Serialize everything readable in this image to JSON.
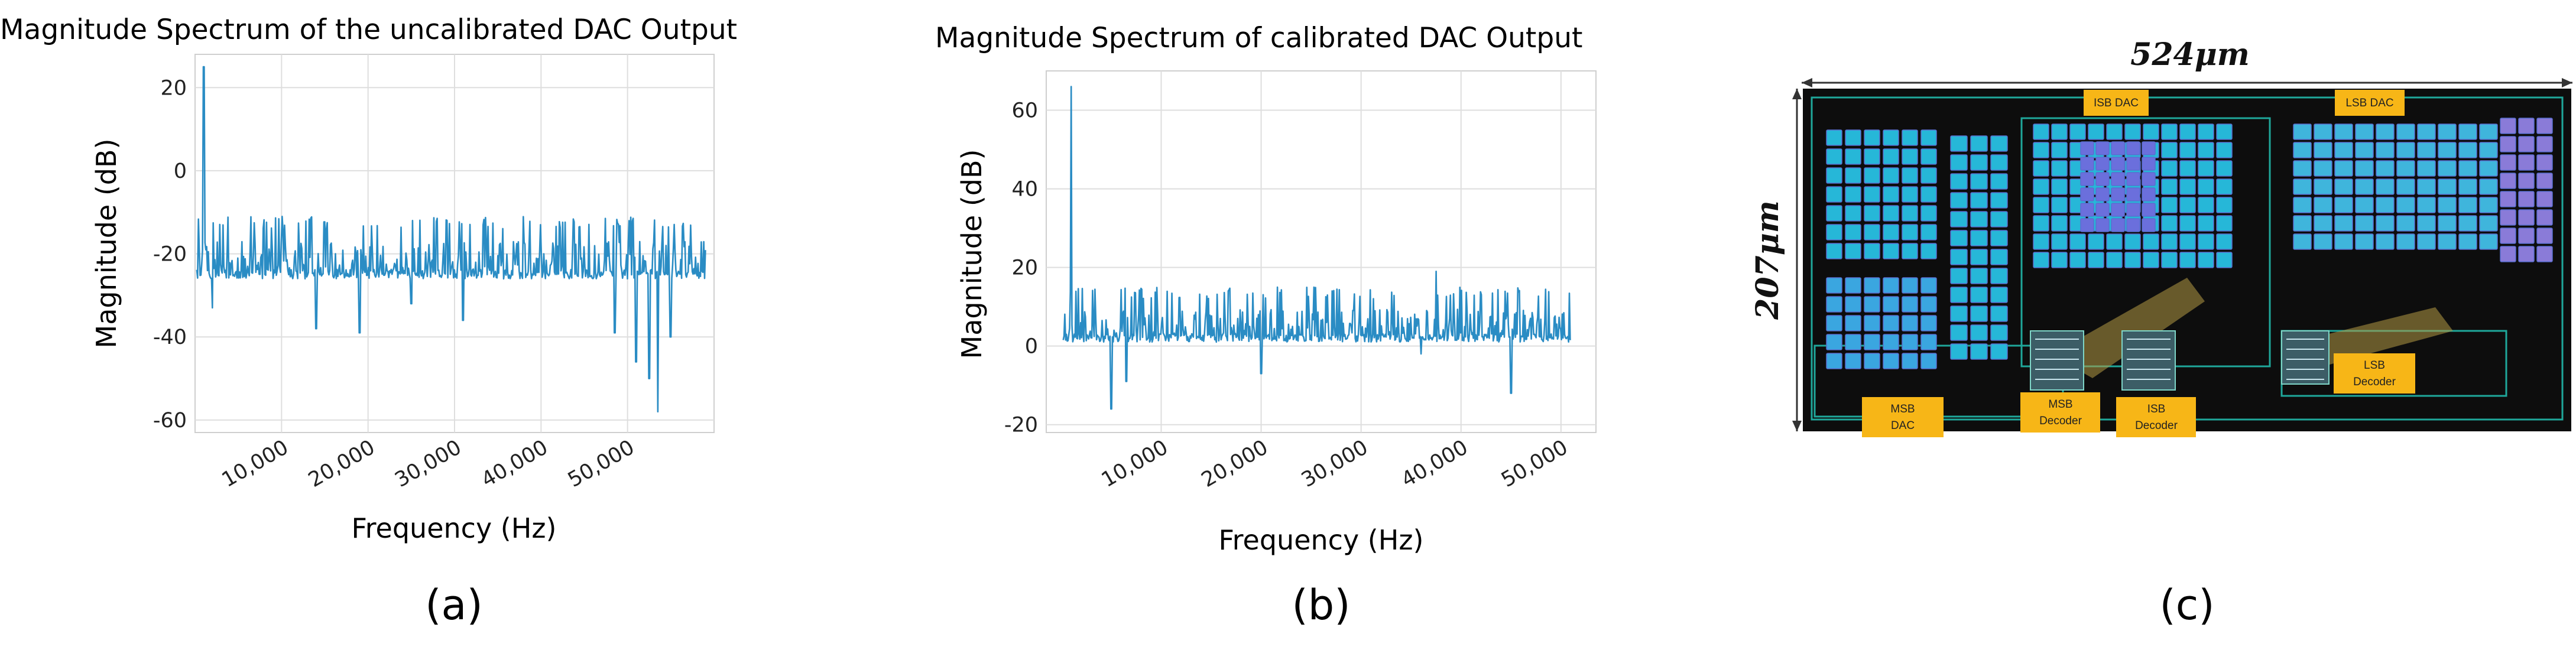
{
  "panel_labels": [
    "(a)",
    "(b)",
    "(c)"
  ],
  "chart_data": [
    {
      "type": "line",
      "title": "Magnitude Spectrum of the uncalibrated DAC Output",
      "xlabel": "Frequency (Hz)",
      "ylabel": "Magnitude (dB)",
      "xlim": [
        0,
        60000
      ],
      "ylim": [
        -63,
        28
      ],
      "x_ticks": [
        10000,
        20000,
        30000,
        40000,
        50000
      ],
      "x_tick_labels": [
        "10,000",
        "20,000",
        "30,000",
        "40,000",
        "50,000"
      ],
      "y_ticks": [
        -60,
        -40,
        -20,
        0,
        20
      ],
      "y_tick_labels": [
        "-60",
        "-40",
        "-20",
        "0",
        "20"
      ],
      "grid": true,
      "color": "#2a8cc4",
      "baseline_db": -26,
      "noise_ceiling_db": -11,
      "peaks": [
        {
          "x": 1000,
          "y": 25
        }
      ],
      "dips": [
        {
          "x": 2000,
          "y": -33
        },
        {
          "x": 14000,
          "y": -38
        },
        {
          "x": 19000,
          "y": -39
        },
        {
          "x": 25000,
          "y": -32
        },
        {
          "x": 31000,
          "y": -36
        },
        {
          "x": 48500,
          "y": -39
        },
        {
          "x": 51000,
          "y": -46
        },
        {
          "x": 52500,
          "y": -50
        },
        {
          "x": 53500,
          "y": -58
        },
        {
          "x": 55000,
          "y": -40
        }
      ],
      "x_range": [
        200,
        59000
      ],
      "tick_label_rotation_deg": 30
    },
    {
      "type": "line",
      "title": "Magnitude Spectrum of calibrated DAC Output",
      "xlabel": "Frequency (Hz)",
      "ylabel": "Magnitude (dB)",
      "xlim": [
        -1500,
        53500
      ],
      "ylim": [
        -22,
        70
      ],
      "x_ticks": [
        10000,
        20000,
        30000,
        40000,
        50000
      ],
      "x_tick_labels": [
        "10,000",
        "20,000",
        "30,000",
        "40,000",
        "50,000"
      ],
      "y_ticks": [
        -20,
        0,
        20,
        40,
        60
      ],
      "y_tick_labels": [
        "-20",
        "0",
        "20",
        "40",
        "60"
      ],
      "grid": true,
      "color": "#2a8cc4",
      "baseline_db": 1,
      "noise_ceiling_db": 15,
      "peaks": [
        {
          "x": 1000,
          "y": 66
        },
        {
          "x": 37500,
          "y": 19
        }
      ],
      "dips": [
        {
          "x": 5000,
          "y": -16
        },
        {
          "x": 6500,
          "y": -9
        },
        {
          "x": 20000,
          "y": -7
        },
        {
          "x": 36000,
          "y": -2
        },
        {
          "x": 45000,
          "y": -12
        }
      ],
      "x_range": [
        200,
        51000
      ],
      "tick_label_rotation_deg": 30
    }
  ],
  "layout_image": {
    "width_label": "524μm",
    "height_label": "207μm",
    "block_labels": [
      "ISB DAC",
      "LSB DAC"
    ],
    "tags": [
      {
        "line1": "MSB",
        "line2": "DAC"
      },
      {
        "line1": "MSB",
        "line2": "Decoder"
      },
      {
        "line1": "ISB",
        "line2": "Decoder"
      },
      {
        "line1": "LSB",
        "line2": "Decoder"
      }
    ],
    "colors": {
      "background": "#0d0d0d",
      "tag": "#f7b617",
      "metal": "#1fa79a",
      "cell": "#26b7d8"
    }
  }
}
